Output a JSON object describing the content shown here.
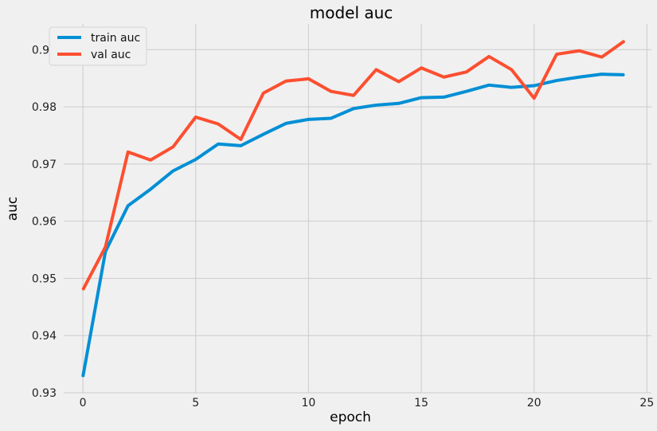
{
  "chart_data": {
    "type": "line",
    "title": "model auc",
    "xlabel": "epoch",
    "ylabel": "auc",
    "xlim": [
      -0.85,
      25.2
    ],
    "ylim": [
      0.93,
      0.9945
    ],
    "xticks": [
      0,
      5,
      10,
      15,
      20,
      25
    ],
    "yticks": [
      0.93,
      0.94,
      0.95,
      0.96,
      0.97,
      0.98,
      0.99
    ],
    "xtick_labels": [
      "0",
      "5",
      "10",
      "15",
      "20",
      "25"
    ],
    "ytick_labels": [
      "0.93",
      "0.94",
      "0.95",
      "0.96",
      "0.97",
      "0.98",
      "0.99"
    ],
    "grid": true,
    "legend_position": "top-left",
    "x": [
      0,
      1,
      2,
      3,
      4,
      5,
      6,
      7,
      8,
      9,
      10,
      11,
      12,
      13,
      14,
      15,
      16,
      17,
      18,
      19,
      20,
      21,
      22,
      23,
      24
    ],
    "series": [
      {
        "name": "train auc",
        "color": "#008fd5",
        "values": [
          0.9328,
          0.9547,
          0.9627,
          0.9656,
          0.9688,
          0.9708,
          0.9735,
          0.9732,
          0.9752,
          0.9771,
          0.9778,
          0.978,
          0.9797,
          0.9803,
          0.9806,
          0.9816,
          0.9817,
          0.9827,
          0.9838,
          0.9834,
          0.9837,
          0.9846,
          0.9852,
          0.9857,
          0.9856
        ]
      },
      {
        "name": "val auc",
        "color": "#fc4f30",
        "values": [
          0.948,
          0.9555,
          0.9721,
          0.9707,
          0.973,
          0.9782,
          0.977,
          0.9743,
          0.9824,
          0.9845,
          0.9849,
          0.9827,
          0.982,
          0.9865,
          0.9844,
          0.9868,
          0.9852,
          0.9861,
          0.9888,
          0.9865,
          0.9815,
          0.9892,
          0.9898,
          0.9887,
          0.9915
        ]
      }
    ]
  }
}
